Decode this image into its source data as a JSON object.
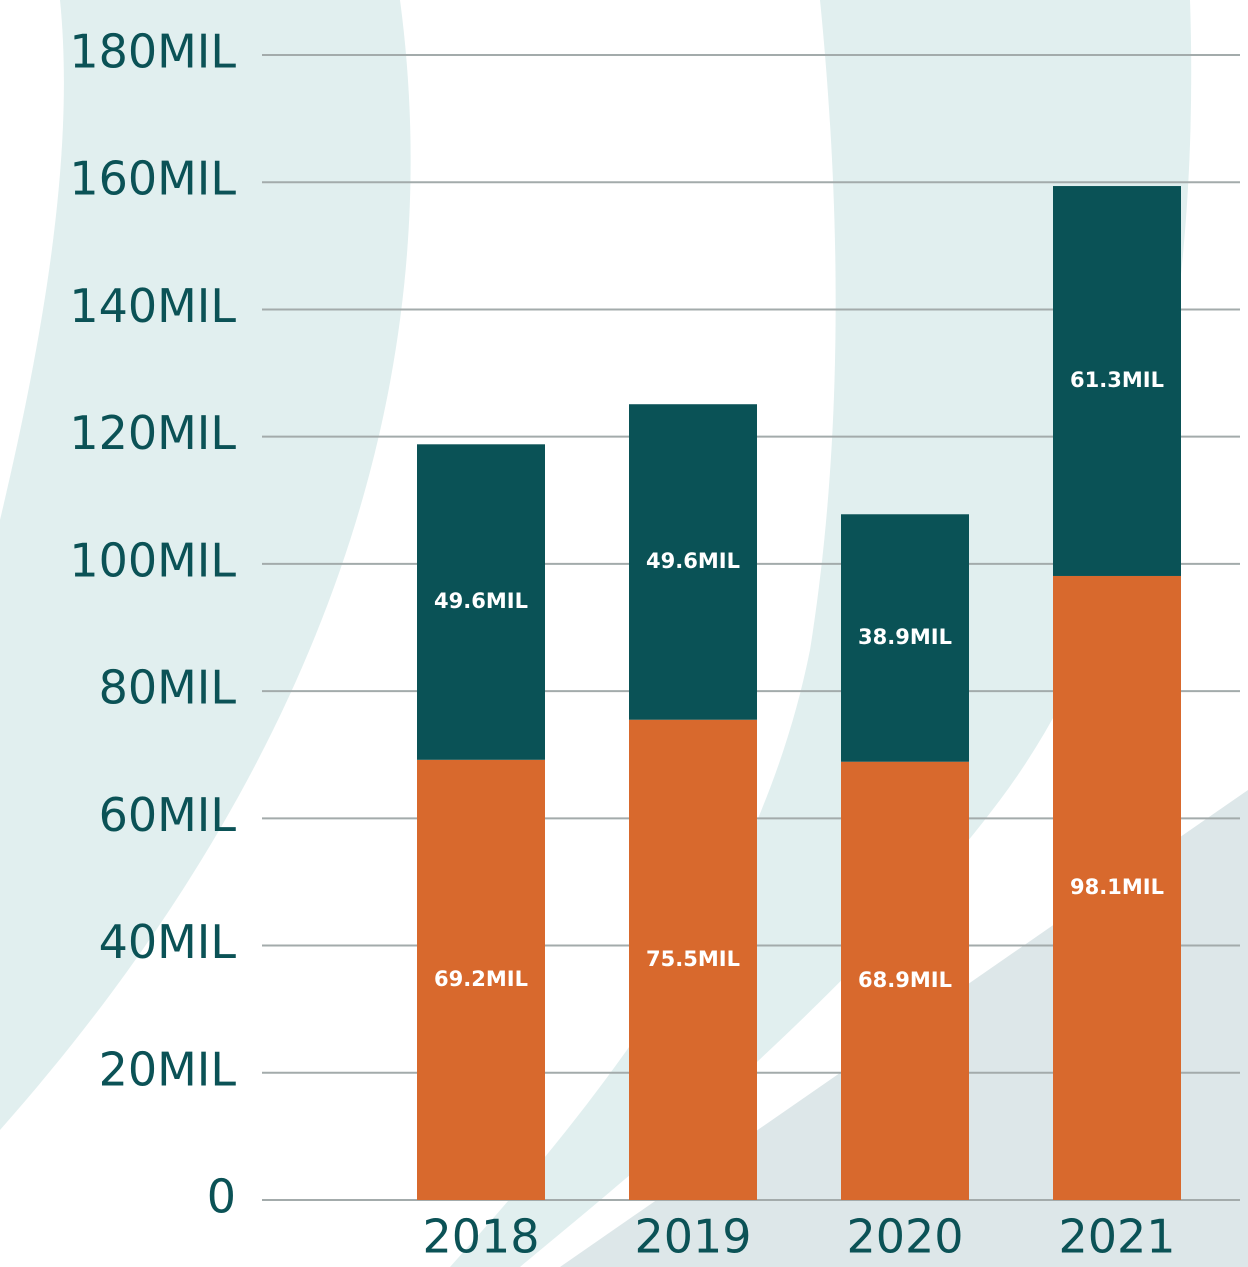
{
  "chart_data": {
    "type": "stacked_bar",
    "categories": [
      "2018",
      "2019",
      "2020",
      "2021"
    ],
    "series": [
      {
        "color": "#d8692d",
        "values": [
          69.2,
          75.5,
          68.9,
          98.1
        ],
        "value_labels": [
          "69.2MIL",
          "75.5MIL",
          "68.9MIL",
          "98.1MIL"
        ]
      },
      {
        "color": "#0a5256",
        "values": [
          49.6,
          49.6,
          38.9,
          61.3
        ],
        "value_labels": [
          "49.6MIL",
          "49.6MIL",
          "38.9MIL",
          "61.3MIL"
        ]
      }
    ],
    "ylim": [
      0,
      180
    ],
    "yticks": [
      0,
      {
        "value": 20,
        "label": "20MIL"
      },
      {
        "value": 40,
        "label": "40MIL"
      },
      {
        "value": 60,
        "label": "60MIL"
      },
      {
        "value": 80,
        "label": "80MIL"
      },
      {
        "value": 100,
        "label": "100MIL"
      },
      {
        "value": 120,
        "label": "120MIL"
      },
      {
        "value": 140,
        "label": "140MIL"
      },
      {
        "value": 160,
        "label": "160MIL"
      },
      {
        "value": 180,
        "label": "180MIL"
      }
    ],
    "grid": true
  }
}
